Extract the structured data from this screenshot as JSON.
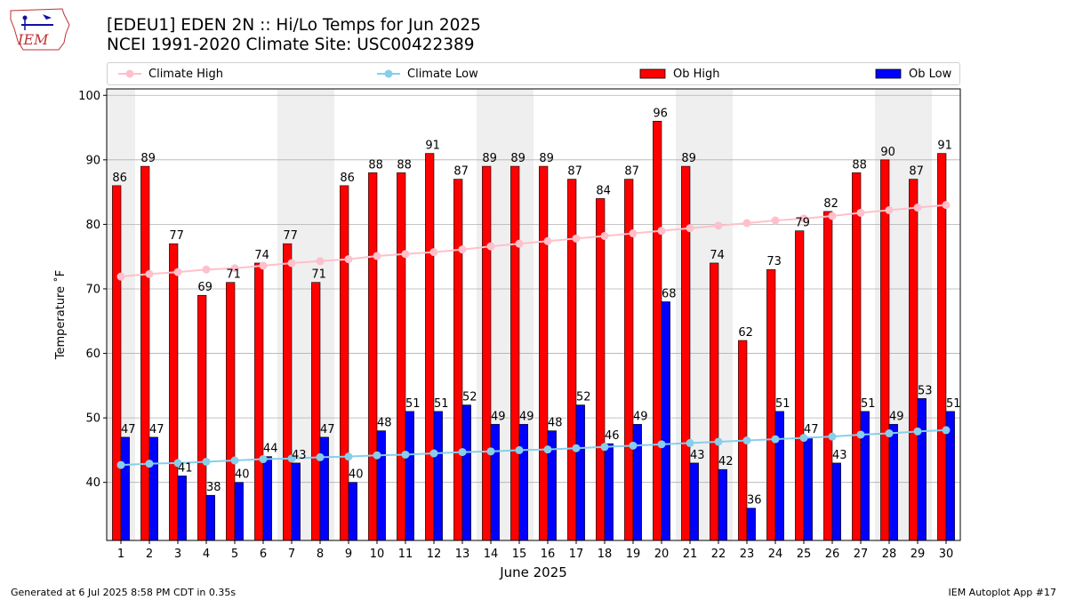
{
  "header": {
    "title_line1": "[EDEU1] EDEN 2N :: Hi/Lo Temps for Jun 2025",
    "title_line2": "NCEI 1991-2020 Climate Site: USC00422389",
    "logo_text": "IEM"
  },
  "legend": {
    "climate_high": "Climate High",
    "climate_low": "Climate Low",
    "ob_high": "Ob High",
    "ob_low": "Ob Low"
  },
  "colors": {
    "ob_high": "#ff0000",
    "ob_low": "#0000ff",
    "climate_high": "#ffc0cb",
    "climate_low": "#87ceeb",
    "weekend_shade": "#efefef"
  },
  "footer": {
    "generated": "Generated at 6 Jul 2025 8:58 PM CDT in 0.35s",
    "app": "IEM Autoplot App #17"
  },
  "chart_data": {
    "type": "bar",
    "xlabel": "June 2025",
    "ylabel": "Temperature ˚F",
    "ylim": [
      31,
      101
    ],
    "yticks": [
      40,
      50,
      60,
      70,
      80,
      90,
      100
    ],
    "grid": "horizontal",
    "legend_position": "top",
    "categories": [
      "1",
      "2",
      "3",
      "4",
      "5",
      "6",
      "7",
      "8",
      "9",
      "10",
      "11",
      "12",
      "13",
      "14",
      "15",
      "16",
      "17",
      "18",
      "19",
      "20",
      "21",
      "22",
      "23",
      "24",
      "25",
      "26",
      "27",
      "28",
      "29",
      "30"
    ],
    "shaded_days": [
      1,
      7,
      8,
      14,
      15,
      21,
      22,
      28,
      29
    ],
    "series": [
      {
        "name": "Ob High",
        "kind": "bar",
        "values": [
          86,
          89,
          77,
          69,
          71,
          74,
          77,
          71,
          86,
          88,
          88,
          91,
          87,
          89,
          89,
          89,
          87,
          84,
          87,
          96,
          89,
          74,
          62,
          73,
          79,
          82,
          88,
          90,
          87,
          91
        ]
      },
      {
        "name": "Ob Low",
        "kind": "bar",
        "values": [
          47,
          47,
          41,
          38,
          40,
          44,
          43,
          47,
          40,
          48,
          51,
          51,
          52,
          49,
          49,
          48,
          52,
          46,
          49,
          68,
          43,
          42,
          36,
          51,
          47,
          43,
          51,
          49,
          53,
          51
        ]
      },
      {
        "name": "Climate High",
        "kind": "line",
        "values": [
          71.9,
          72.3,
          72.6,
          73.0,
          73.2,
          73.6,
          74.0,
          74.3,
          74.6,
          75.1,
          75.4,
          75.7,
          76.1,
          76.6,
          77.0,
          77.4,
          77.8,
          78.2,
          78.6,
          79.0,
          79.4,
          79.8,
          80.2,
          80.6,
          80.9,
          81.3,
          81.8,
          82.2,
          82.6,
          83.0
        ]
      },
      {
        "name": "Climate Low",
        "kind": "line",
        "values": [
          42.7,
          42.9,
          43.0,
          43.2,
          43.4,
          43.6,
          43.7,
          43.9,
          44.0,
          44.2,
          44.3,
          44.5,
          44.7,
          44.8,
          45.0,
          45.1,
          45.3,
          45.5,
          45.7,
          45.9,
          46.1,
          46.3,
          46.5,
          46.7,
          46.9,
          47.1,
          47.4,
          47.6,
          47.9,
          48.1
        ]
      }
    ]
  }
}
